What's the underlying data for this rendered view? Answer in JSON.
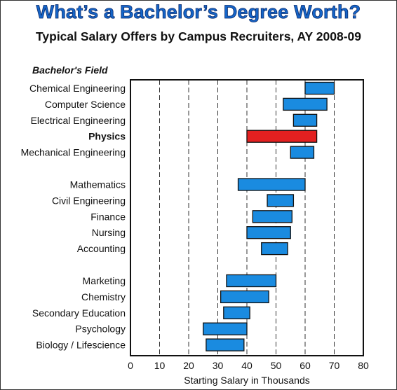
{
  "header": {
    "title": "What’s a Bachelor’s Degree Worth?",
    "subtitle": "Typical Salary Offers by Campus Recruiters, AY 2008-09",
    "field_heading": "Bachelor's Field"
  },
  "colors": {
    "bar": "#1a8be0",
    "highlight_bar": "#e32020",
    "highlight_label": "#d31b1b",
    "title": "#1565c8"
  },
  "chart_data": {
    "type": "bar",
    "orientation": "horizontal-range",
    "title": "What’s a Bachelor’s Degree Worth?",
    "subtitle": "Typical Salary Offers by Campus Recruiters, AY 2008-09",
    "xlabel": "Starting Salary in Thousands",
    "ylabel": "Bachelor's Field",
    "xlim": [
      0,
      80
    ],
    "xticks": [
      0,
      10,
      20,
      30,
      40,
      50,
      60,
      70,
      80
    ],
    "grid": "vertical dashed",
    "highlight": "Physics",
    "categories": [
      "Chemical Engineering",
      "Computer Science",
      "Electrical Engineering",
      "Physics",
      "Mechanical Engineering",
      "Mathematics",
      "Civil Engineering",
      "Finance",
      "Nursing",
      "Accounting",
      "Marketing",
      "Chemistry",
      "Secondary Education",
      "Psychology",
      "Biology / Lifescience"
    ],
    "groups": [
      5,
      5,
      5
    ],
    "low": [
      60,
      52.5,
      56,
      40,
      55,
      37,
      47,
      42,
      40,
      45,
      33,
      31,
      32,
      25,
      26
    ],
    "high": [
      70,
      67.5,
      64,
      64,
      63,
      60,
      56,
      55.5,
      55,
      54,
      50,
      47.5,
      41,
      40,
      39
    ]
  }
}
